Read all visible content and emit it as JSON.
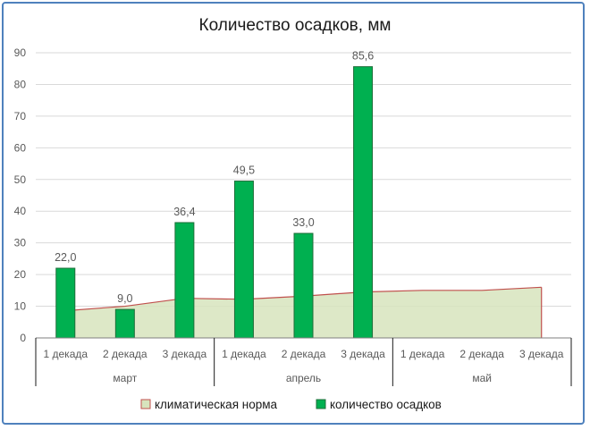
{
  "chart_data": {
    "type": "bar",
    "title": "Количество осадков, мм",
    "categories": [
      "1 декада",
      "2 декада",
      "3 декада",
      "1 декада",
      "2 декада",
      "3 декада",
      "1 декада",
      "2 декада",
      "3 декада"
    ],
    "groups": [
      {
        "label": "март",
        "span": 3
      },
      {
        "label": "апрель",
        "span": 3
      },
      {
        "label": "май",
        "span": 3
      }
    ],
    "ylim": [
      0,
      90
    ],
    "yticks": [
      0,
      10,
      20,
      30,
      40,
      50,
      60,
      70,
      80,
      90
    ],
    "grid": true,
    "legend_position": "bottom",
    "series": [
      {
        "name": "климатическая норма",
        "type": "area",
        "values": [
          8.5,
          10,
          12.5,
          12.2,
          13.2,
          14.5,
          15,
          15,
          16
        ],
        "fill": "#d7e4bd",
        "stroke": "#c0504d"
      },
      {
        "name": "количество осадков",
        "type": "bar",
        "values": [
          22.0,
          9.0,
          36.4,
          49.5,
          33.0,
          85.6,
          null,
          null,
          null
        ],
        "labels": [
          "22,0",
          "9,0",
          "36,4",
          "49,5",
          "33,0",
          "85,6",
          "",
          "",
          ""
        ],
        "fill": "#00b050",
        "stroke": "#1f6e3a"
      }
    ]
  }
}
